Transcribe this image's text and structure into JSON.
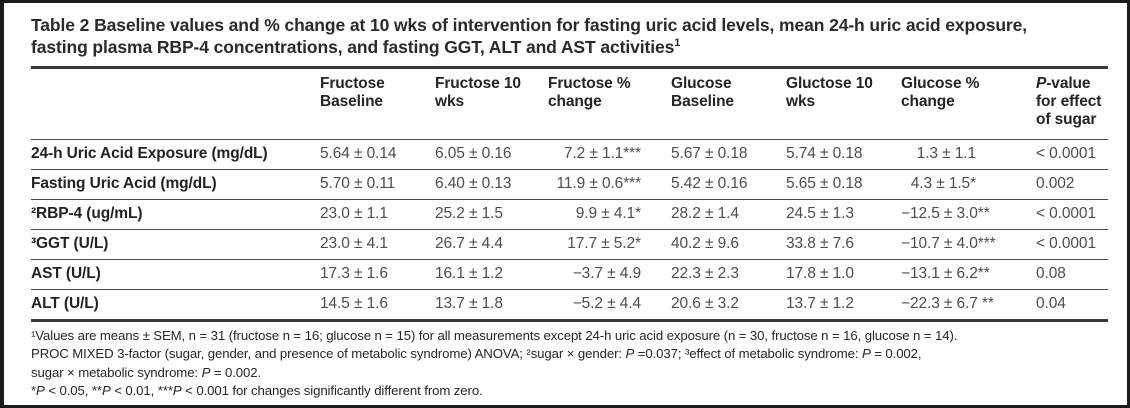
{
  "title": {
    "text": "Table 2 Baseline values and % change at 10 wks of intervention for fasting uric acid levels, mean 24-h uric acid exposure, fasting plasma RBP-4 concentrations, and fasting GGT, ALT and AST activities",
    "superscript": "1"
  },
  "table": {
    "headers": {
      "col_label": "",
      "fructose_baseline": "Fructose Baseline",
      "fructose_10wks": "Fructose 10 wks",
      "fructose_change": "Fructose % change",
      "glucose_baseline": "Glucose Baseline",
      "glucose_10wks": "Gluctose 10 wks",
      "glucose_change": "Glucose % change",
      "p_value_italic": "P",
      "p_value_rest": "-value for effect of sugar"
    },
    "rows": [
      {
        "label": "24-h Uric Acid Exposure (mg/dL)",
        "fructose_baseline": "5.64 ± 0.14",
        "fructose_10wks": "6.05 ± 0.16",
        "fructose_change": "7.2 ± 1.1***",
        "glucose_baseline": "5.67 ± 0.18",
        "glucose_10wks": "5.74 ± 0.18",
        "glucose_change": "1.3 ± 1.1",
        "p_value": "< 0.0001"
      },
      {
        "label": "Fasting Uric Acid (mg/dL)",
        "fructose_baseline": "5.70 ± 0.11",
        "fructose_10wks": "6.40 ± 0.13",
        "fructose_change": "11.9 ± 0.6***",
        "glucose_baseline": "5.42 ± 0.16",
        "glucose_10wks": "5.65 ± 0.18",
        "glucose_change": "4.3 ± 1.5*",
        "p_value": "0.002"
      },
      {
        "label": "²RBP-4 (ug/mL)",
        "fructose_baseline": "23.0 ± 1.1",
        "fructose_10wks": "25.2 ± 1.5",
        "fructose_change": "9.9 ± 4.1*",
        "glucose_baseline": "28.2 ± 1.4",
        "glucose_10wks": "24.5 ± 1.3",
        "glucose_change": "−12.5 ± 3.0**",
        "p_value": "< 0.0001"
      },
      {
        "label": "³GGT (U/L)",
        "fructose_baseline": "23.0 ± 4.1",
        "fructose_10wks": "26.7 ± 4.4",
        "fructose_change": "17.7 ± 5.2*",
        "glucose_baseline": "40.2 ± 9.6",
        "glucose_10wks": "33.8 ± 7.6",
        "glucose_change": "−10.7 ± 4.0***",
        "p_value": "< 0.0001"
      },
      {
        "label": "AST (U/L)",
        "fructose_baseline": "17.3 ± 1.6",
        "fructose_10wks": "16.1 ± 1.2",
        "fructose_change": "−3.7 ± 4.9",
        "glucose_baseline": "22.3 ± 2.3",
        "glucose_10wks": "17.8 ± 1.0",
        "glucose_change": "−13.1 ± 6.2**",
        "p_value": "0.08"
      },
      {
        "label": "ALT (U/L)",
        "fructose_baseline": "14.5 ± 1.6",
        "fructose_10wks": "13.7 ± 1.8",
        "fructose_change": "−5.2 ± 4.4",
        "glucose_baseline": "20.6 ± 3.2",
        "glucose_10wks": "13.7 ± 1.2",
        "glucose_change": "−22.3 ± 6.7 **",
        "p_value": "0.04"
      }
    ]
  },
  "footnotes": {
    "lines": [
      {
        "runs": [
          {
            "t": "¹Values are means ± SEM, n = 31 (fructose n = 16; glucose n = 15) for all measurements except 24-h uric acid exposure (n = 30, fructose n = 16, glucose n = 14)."
          }
        ]
      },
      {
        "runs": [
          {
            "t": "PROC MIXED 3-factor (sugar, gender, and presence of metabolic syndrome) ANOVA; ²sugar × gender: "
          },
          {
            "t": "P",
            "i": true
          },
          {
            "t": " =0.037; ³effect of metabolic syndrome: "
          },
          {
            "t": "P",
            "i": true
          },
          {
            "t": " = 0.002,"
          }
        ]
      },
      {
        "runs": [
          {
            "t": "sugar × metabolic syndrome: "
          },
          {
            "t": "P",
            "i": true
          },
          {
            "t": " = 0.002."
          }
        ]
      },
      {
        "runs": [
          {
            "t": "*"
          },
          {
            "t": "P",
            "i": true
          },
          {
            "t": " < 0.05, **"
          },
          {
            "t": "P",
            "i": true
          },
          {
            "t": " < 0.01, ***"
          },
          {
            "t": "P",
            "i": true
          },
          {
            "t": " < 0.001 for changes significantly different from zero."
          }
        ]
      }
    ]
  }
}
